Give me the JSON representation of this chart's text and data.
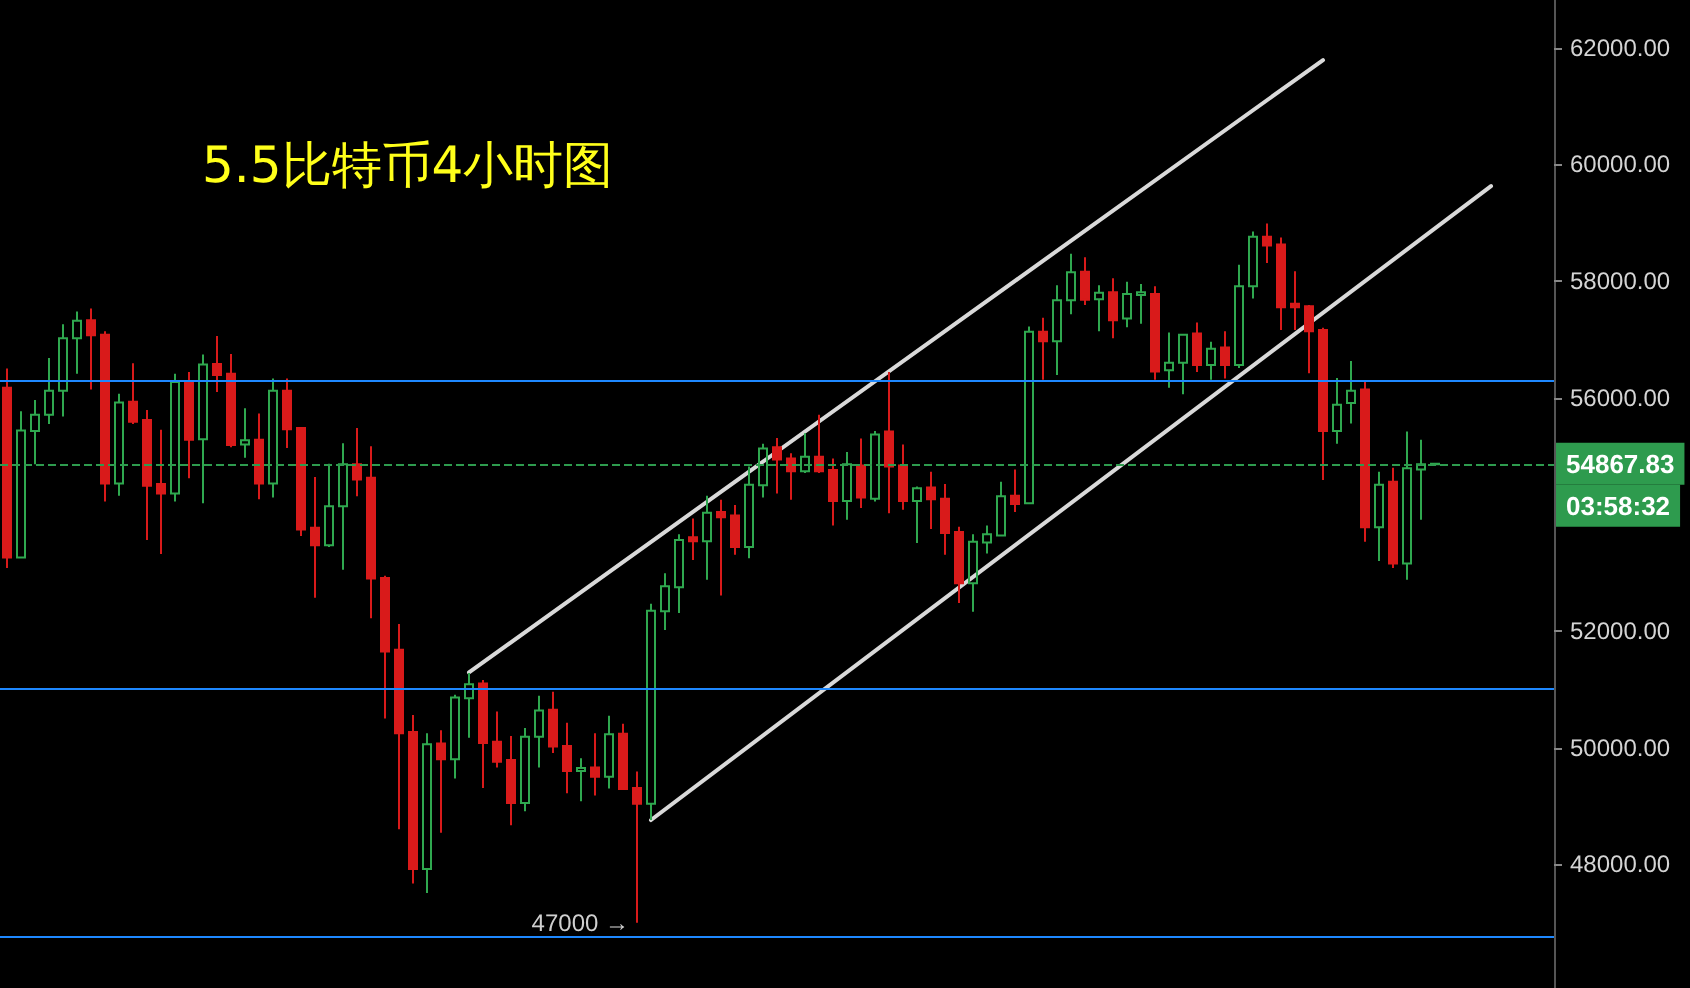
{
  "chart_data": {
    "type": "candlestick",
    "title": "5.5比特币4小时图",
    "categories": [
      null,
      null,
      null,
      null,
      null,
      null,
      null,
      null,
      null,
      null,
      null,
      null,
      null,
      null,
      null,
      null,
      null,
      null,
      null,
      null,
      null,
      null,
      null,
      null,
      null,
      null,
      null,
      null,
      null,
      null,
      null,
      null,
      null,
      null,
      null,
      null,
      null,
      null,
      null,
      null,
      null,
      null,
      null,
      null,
      null,
      null,
      null,
      null,
      null,
      null,
      null,
      null,
      null,
      null,
      null,
      null,
      null,
      null,
      null,
      null,
      null,
      null,
      null,
      null,
      null,
      null,
      null,
      null,
      null,
      null,
      null,
      null,
      null,
      null,
      null,
      null,
      null,
      null,
      null,
      null,
      null,
      null,
      null,
      null,
      null,
      null,
      null,
      null,
      null,
      null,
      null,
      null,
      null,
      null,
      null,
      null,
      null,
      null,
      null,
      null,
      null,
      null,
      null,
      null,
      null,
      null,
      null,
      null,
      null,
      null,
      null
    ],
    "ohlc": [
      [
        56170,
        56500,
        53080,
        53260
      ],
      [
        53260,
        55770,
        53250,
        55440
      ],
      [
        55430,
        55960,
        54860,
        55710
      ],
      [
        55710,
        56680,
        55550,
        56120
      ],
      [
        56120,
        57260,
        55680,
        57020
      ],
      [
        57020,
        57480,
        56410,
        57320
      ],
      [
        57330,
        57530,
        56140,
        57070
      ],
      [
        57080,
        57140,
        54220,
        54530
      ],
      [
        54530,
        56070,
        54320,
        55920
      ],
      [
        55930,
        56590,
        55550,
        55590
      ],
      [
        55620,
        55790,
        53560,
        54490
      ],
      [
        54520,
        55450,
        53320,
        54360
      ],
      [
        54360,
        56410,
        54220,
        56270
      ],
      [
        56270,
        56440,
        54620,
        55280
      ],
      [
        55290,
        56740,
        54190,
        56570
      ],
      [
        56580,
        57060,
        56100,
        56390
      ],
      [
        56410,
        56750,
        55150,
        55190
      ],
      [
        55200,
        55820,
        54970,
        55270
      ],
      [
        55280,
        55730,
        54260,
        54530
      ],
      [
        54530,
        56330,
        54290,
        56120
      ],
      [
        56120,
        56330,
        55140,
        55460
      ],
      [
        55480,
        55500,
        53630,
        53740
      ],
      [
        53770,
        54640,
        52570,
        53470
      ],
      [
        53470,
        54870,
        53440,
        54140
      ],
      [
        54140,
        55220,
        53050,
        54860
      ],
      [
        54860,
        55480,
        54310,
        54600
      ],
      [
        54630,
        55170,
        52220,
        52900
      ],
      [
        52910,
        52950,
        50500,
        51650
      ],
      [
        51680,
        52120,
        48600,
        50250
      ],
      [
        50270,
        50560,
        47670,
        47920
      ],
      [
        47920,
        50250,
        47510,
        50060
      ],
      [
        50070,
        50300,
        48540,
        49800
      ],
      [
        49800,
        50910,
        49470,
        50860
      ],
      [
        50850,
        51280,
        50170,
        51090
      ],
      [
        51100,
        51160,
        49310,
        50080
      ],
      [
        50100,
        50620,
        49660,
        49760
      ],
      [
        49790,
        50200,
        48670,
        49050
      ],
      [
        49050,
        50340,
        48910,
        50190
      ],
      [
        50190,
        50890,
        49660,
        50640
      ],
      [
        50650,
        50960,
        49910,
        50020
      ],
      [
        50030,
        50430,
        49220,
        49600
      ],
      [
        49600,
        49820,
        49080,
        49650
      ],
      [
        49660,
        50250,
        49180,
        49500
      ],
      [
        49500,
        50550,
        49300,
        50230
      ],
      [
        50240,
        50410,
        49280,
        49290
      ],
      [
        49310,
        49590,
        47000,
        49040
      ],
      [
        49040,
        52470,
        48760,
        52350
      ],
      [
        52340,
        52990,
        52020,
        52770
      ],
      [
        52750,
        53660,
        52310,
        53560
      ],
      [
        53610,
        53930,
        53220,
        53540
      ],
      [
        53540,
        54320,
        52880,
        54030
      ],
      [
        54040,
        54250,
        52610,
        53950
      ],
      [
        53980,
        54160,
        53310,
        53440
      ],
      [
        53440,
        54820,
        53250,
        54510
      ],
      [
        54500,
        55210,
        54290,
        55130
      ],
      [
        55150,
        55310,
        54360,
        54940
      ],
      [
        54960,
        55050,
        54250,
        54740
      ],
      [
        54740,
        55390,
        54710,
        54990
      ],
      [
        54990,
        55710,
        54710,
        54740
      ],
      [
        54760,
        54960,
        53810,
        54230
      ],
      [
        54230,
        55070,
        53910,
        54860
      ],
      [
        54840,
        55300,
        54110,
        54290
      ],
      [
        54270,
        55430,
        54220,
        55370
      ],
      [
        55420,
        56440,
        54020,
        54820
      ],
      [
        54840,
        55200,
        54080,
        54230
      ],
      [
        54230,
        54480,
        53510,
        54450
      ],
      [
        54460,
        54730,
        53750,
        54260
      ],
      [
        54270,
        54520,
        53310,
        53680
      ],
      [
        53700,
        53790,
        52480,
        52820
      ],
      [
        52820,
        53660,
        52330,
        53530
      ],
      [
        53520,
        53810,
        53330,
        53660
      ],
      [
        53640,
        54560,
        53620,
        54310
      ],
      [
        54320,
        54770,
        54040,
        54180
      ],
      [
        54190,
        57220,
        54180,
        57130
      ],
      [
        57130,
        57370,
        56310,
        56970
      ],
      [
        56970,
        57930,
        56390,
        57670
      ],
      [
        57670,
        58470,
        57430,
        58150
      ],
      [
        58160,
        58410,
        57590,
        57680
      ],
      [
        57690,
        57930,
        57140,
        57800
      ],
      [
        57810,
        58050,
        57020,
        57330
      ],
      [
        57360,
        57990,
        57210,
        57780
      ],
      [
        57760,
        57950,
        57270,
        57810
      ],
      [
        57780,
        57910,
        56310,
        56450
      ],
      [
        56470,
        57120,
        56170,
        56600
      ],
      [
        56600,
        57090,
        56060,
        57080
      ],
      [
        57100,
        57290,
        56440,
        56560
      ],
      [
        56560,
        56960,
        56310,
        56840
      ],
      [
        56860,
        57140,
        56330,
        56560
      ],
      [
        56560,
        58280,
        56510,
        57910
      ],
      [
        57910,
        58850,
        57700,
        58760
      ],
      [
        58760,
        58990,
        58310,
        58610
      ],
      [
        58630,
        58750,
        57160,
        57550
      ],
      [
        57610,
        58170,
        57160,
        57550
      ],
      [
        57570,
        57590,
        56420,
        57140
      ],
      [
        57160,
        57200,
        54590,
        55430
      ],
      [
        55430,
        56340,
        55210,
        55880
      ],
      [
        55910,
        56630,
        55560,
        56120
      ],
      [
        56140,
        56280,
        53530,
        53780
      ],
      [
        53780,
        54730,
        53200,
        54510
      ],
      [
        54560,
        54800,
        53080,
        53160
      ],
      [
        53160,
        55420,
        52880,
        54790
      ],
      [
        54770,
        55280,
        53910,
        54860
      ],
      [
        54860,
        54880,
        54850,
        54867.83
      ],
      null,
      null,
      null,
      null,
      null,
      null,
      null,
      null
    ],
    "colors": [
      "#d91a1a",
      "#2fa84f",
      "#2fa84f",
      "#2fa84f",
      "#2fa84f",
      "#2fa84f",
      "#d91a1a",
      "#d91a1a",
      "#2fa84f",
      "#d91a1a",
      "#d91a1a",
      "#d91a1a",
      "#2fa84f",
      "#d91a1a",
      "#2fa84f",
      "#d91a1a",
      "#d91a1a",
      "#2fa84f",
      "#d91a1a",
      "#2fa84f",
      "#d91a1a",
      "#d91a1a",
      "#d91a1a",
      "#2fa84f",
      "#2fa84f",
      "#d91a1a",
      "#d91a1a",
      "#d91a1a",
      "#d91a1a",
      "#d91a1a",
      "#2fa84f",
      "#d91a1a",
      "#2fa84f",
      "#2fa84f",
      "#d91a1a",
      "#d91a1a",
      "#d91a1a",
      "#2fa84f",
      "#2fa84f",
      "#d91a1a",
      "#d91a1a",
      "#2fa84f",
      "#d91a1a",
      "#2fa84f",
      "#d91a1a",
      "#d91a1a",
      "#2fa84f",
      "#2fa84f",
      "#2fa84f",
      "#d91a1a",
      "#2fa84f",
      "#d91a1a",
      "#d91a1a",
      "#2fa84f",
      "#2fa84f",
      "#d91a1a",
      "#d91a1a",
      "#2fa84f",
      "#d91a1a",
      "#d91a1a",
      "#2fa84f",
      "#d91a1a",
      "#2fa84f",
      "#d91a1a",
      "#d91a1a",
      "#2fa84f",
      "#d91a1a",
      "#d91a1a",
      "#d91a1a",
      "#2fa84f",
      "#2fa84f",
      "#2fa84f",
      "#d91a1a",
      "#2fa84f",
      "#d91a1a",
      "#2fa84f",
      "#2fa84f",
      "#d91a1a",
      "#2fa84f",
      "#d91a1a",
      "#2fa84f",
      "#2fa84f",
      "#d91a1a",
      "#2fa84f",
      "#2fa84f",
      "#d91a1a",
      "#2fa84f",
      "#d91a1a",
      "#2fa84f",
      "#2fa84f",
      "#d91a1a",
      "#d91a1a",
      "#d91a1a",
      "#d91a1a",
      "#d91a1a",
      "#2fa84f",
      "#2fa84f",
      "#d91a1a",
      "#2fa84f",
      "#d91a1a",
      "#2fa84f",
      "#2fa84f",
      "#2fa84f",
      null,
      null,
      null,
      null,
      null,
      null,
      null,
      null
    ],
    "series": [
      {
        "type": "line",
        "color": "#d9d9d9",
        "values": [
          null,
          null,
          null,
          null,
          null,
          null,
          null,
          null,
          null,
          null,
          null,
          null,
          null,
          null,
          null,
          null,
          null,
          null,
          null,
          null,
          null,
          null,
          null,
          null,
          null,
          null,
          null,
          null,
          null,
          null,
          null,
          null,
          null,
          51290,
          null,
          null,
          null,
          null,
          null,
          null,
          null,
          null,
          null,
          null,
          null,
          null,
          null,
          null,
          null,
          null,
          null,
          null,
          null,
          null,
          null,
          null,
          null,
          null,
          null,
          null,
          null,
          null,
          null,
          null,
          null,
          null,
          null,
          null,
          null,
          null,
          null,
          null,
          null,
          null,
          null,
          null,
          null,
          null,
          null,
          null,
          null,
          null,
          null,
          null,
          null,
          null,
          null,
          null,
          null,
          null,
          null,
          null,
          null,
          null,
          61790,
          null,
          null,
          null,
          null,
          null,
          null,
          null,
          null,
          null,
          null,
          null,
          null,
          null,
          null,
          null,
          null
        ]
      },
      {
        "type": "line",
        "color": "#d9d9d9",
        "values": [
          null,
          null,
          null,
          null,
          null,
          null,
          null,
          null,
          null,
          null,
          null,
          null,
          null,
          null,
          null,
          null,
          null,
          null,
          null,
          null,
          null,
          null,
          null,
          null,
          null,
          null,
          null,
          null,
          null,
          null,
          null,
          null,
          null,
          null,
          null,
          null,
          null,
          null,
          null,
          null,
          null,
          null,
          null,
          null,
          null,
          null,
          48760,
          null,
          null,
          null,
          null,
          null,
          null,
          null,
          null,
          null,
          null,
          null,
          null,
          null,
          null,
          null,
          null,
          null,
          null,
          null,
          null,
          null,
          null,
          null,
          null,
          null,
          null,
          null,
          null,
          null,
          null,
          null,
          null,
          null,
          null,
          null,
          null,
          null,
          null,
          null,
          null,
          null,
          null,
          null,
          null,
          null,
          null,
          null,
          null,
          null,
          null,
          null,
          null,
          null,
          null,
          null,
          null,
          null,
          null,
          null,
          59630,
          null,
          null,
          null,
          null
        ]
      }
    ],
    "ylim": [
      45880,
      62820
    ],
    "yticks": [
      {
        "value": 48000,
        "label": "48000.00"
      },
      {
        "value": 50000,
        "label": "50000.00"
      },
      {
        "value": 52000,
        "label": "52000.00"
      },
      {
        "value": 56000,
        "label": "56000.00"
      },
      {
        "value": 58000,
        "label": "58000.00"
      },
      {
        "value": 60000,
        "label": "60000.00"
      },
      {
        "value": 62000,
        "label": "62000.00"
      }
    ],
    "tick_labels": "y",
    "ref_lines": [
      {
        "axis": "y",
        "value": 56300,
        "color": "#1e88ff"
      },
      {
        "axis": "y",
        "value": 51000,
        "color": "#1e88ff"
      },
      {
        "axis": "y",
        "value": 46750,
        "color": "#1e88ff"
      },
      {
        "axis": "y",
        "value": 54867.83,
        "label": "54867.83",
        "color": "#2e9b4e",
        "line_style": "dashed"
      }
    ],
    "annotations": [
      "47000 →",
      "03:58:32"
    ]
  }
}
